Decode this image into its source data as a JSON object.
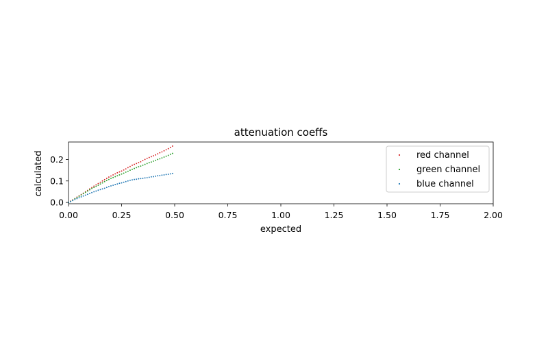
{
  "chart_data": {
    "type": "scatter",
    "title": "attenuation coeffs",
    "xlabel": "expected",
    "ylabel": "calculated",
    "xlim": [
      0,
      2
    ],
    "ylim": [
      -0.006,
      0.281
    ],
    "xticks": [
      "0.00",
      "0.25",
      "0.50",
      "0.75",
      "1.00",
      "1.25",
      "1.50",
      "1.75",
      "2.00"
    ],
    "yticks": [
      "0.0",
      "0.1",
      "0.2"
    ],
    "grid": false,
    "legend": "top-right",
    "x": [
      0.0,
      0.01,
      0.02,
      0.03,
      0.04,
      0.05,
      0.06,
      0.07,
      0.08,
      0.09,
      0.1,
      0.11,
      0.12,
      0.13,
      0.14,
      0.15,
      0.16,
      0.17,
      0.18,
      0.19,
      0.2,
      0.21,
      0.22,
      0.23,
      0.24,
      0.25,
      0.26,
      0.27,
      0.28,
      0.29,
      0.3,
      0.31,
      0.32,
      0.33,
      0.34,
      0.35,
      0.36,
      0.37,
      0.38,
      0.39,
      0.4,
      0.41,
      0.42,
      0.43,
      0.44,
      0.45,
      0.46,
      0.47,
      0.48,
      0.49
    ],
    "series": [
      {
        "name": "red channel",
        "color": "#d62728",
        "values": [
          0.0,
          0.006,
          0.012,
          0.018,
          0.025,
          0.031,
          0.037,
          0.043,
          0.05,
          0.056,
          0.063,
          0.069,
          0.076,
          0.082,
          0.088,
          0.094,
          0.1,
          0.106,
          0.112,
          0.118,
          0.123,
          0.128,
          0.133,
          0.138,
          0.142,
          0.146,
          0.151,
          0.156,
          0.162,
          0.167,
          0.173,
          0.177,
          0.181,
          0.185,
          0.189,
          0.195,
          0.2,
          0.205,
          0.209,
          0.213,
          0.217,
          0.221,
          0.226,
          0.231,
          0.235,
          0.24,
          0.245,
          0.25,
          0.256,
          0.262
        ]
      },
      {
        "name": "green channel",
        "color": "#2ca02c",
        "values": [
          0.0,
          0.005,
          0.011,
          0.017,
          0.023,
          0.029,
          0.035,
          0.041,
          0.047,
          0.053,
          0.059,
          0.065,
          0.07,
          0.075,
          0.08,
          0.086,
          0.091,
          0.097,
          0.102,
          0.107,
          0.112,
          0.116,
          0.12,
          0.124,
          0.128,
          0.132,
          0.136,
          0.141,
          0.145,
          0.15,
          0.154,
          0.158,
          0.162,
          0.166,
          0.169,
          0.173,
          0.177,
          0.181,
          0.185,
          0.188,
          0.192,
          0.196,
          0.2,
          0.203,
          0.207,
          0.211,
          0.215,
          0.219,
          0.224,
          0.228
        ]
      },
      {
        "name": "blue channel",
        "color": "#1f77b4",
        "values": [
          0.0,
          0.004,
          0.009,
          0.014,
          0.018,
          0.022,
          0.026,
          0.03,
          0.034,
          0.038,
          0.042,
          0.046,
          0.05,
          0.053,
          0.057,
          0.06,
          0.063,
          0.066,
          0.07,
          0.074,
          0.077,
          0.08,
          0.083,
          0.086,
          0.089,
          0.091,
          0.094,
          0.097,
          0.1,
          0.103,
          0.105,
          0.107,
          0.108,
          0.11,
          0.111,
          0.112,
          0.114,
          0.115,
          0.117,
          0.119,
          0.12,
          0.122,
          0.124,
          0.125,
          0.127,
          0.128,
          0.13,
          0.131,
          0.133,
          0.135
        ]
      }
    ]
  }
}
